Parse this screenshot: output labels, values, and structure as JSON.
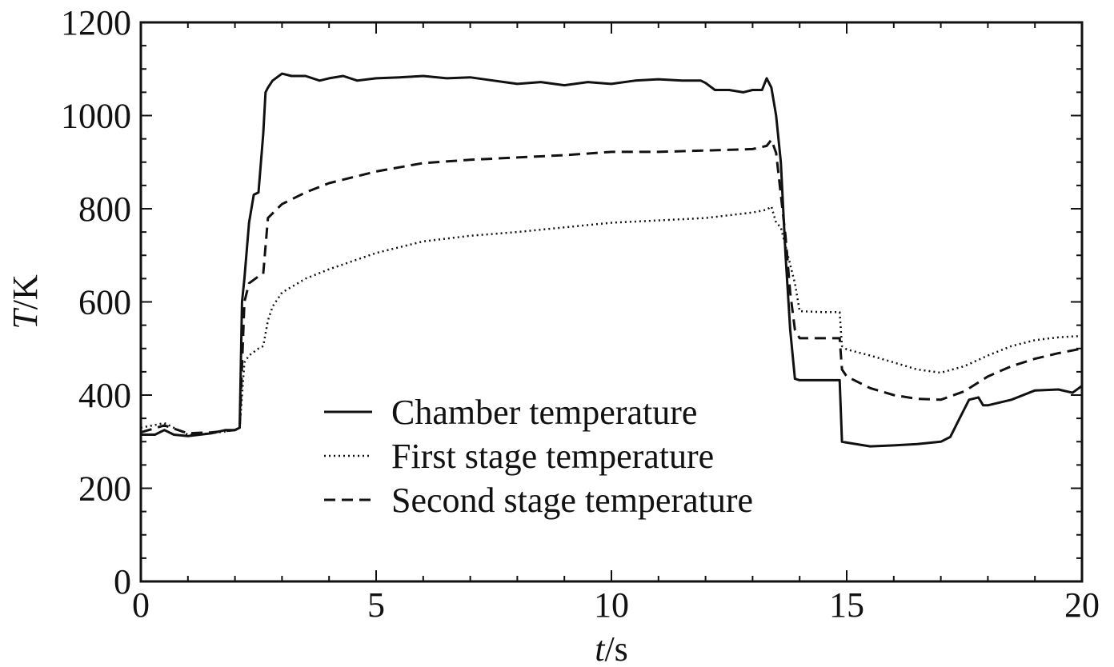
{
  "chart_data": {
    "type": "line",
    "xlabel_italic": "t",
    "xlabel_unit": "/s",
    "ylabel_italic": "T",
    "ylabel_unit": "/K",
    "xlim": [
      0,
      20
    ],
    "ylim": [
      0,
      1200
    ],
    "x_ticks": [
      0,
      5,
      10,
      15,
      20
    ],
    "x_tick_labels": [
      "0",
      "5",
      "10",
      "15",
      "20"
    ],
    "y_ticks": [
      0,
      200,
      400,
      600,
      800,
      1000,
      1200
    ],
    "y_tick_labels": [
      "0",
      "200",
      "400",
      "600",
      "800",
      "1000",
      "1200"
    ],
    "grid": false,
    "legend_placement": "lower-center",
    "series": [
      {
        "name": "Chamber temperature",
        "style": "solid",
        "color": "#111111",
        "x": [
          0,
          0.3,
          0.5,
          0.7,
          1.0,
          1.5,
          1.8,
          2.0,
          2.1,
          2.15,
          2.2,
          2.3,
          2.4,
          2.5,
          2.6,
          2.65,
          2.7,
          2.8,
          3.0,
          3.2,
          3.5,
          3.8,
          4.0,
          4.3,
          4.6,
          5.0,
          5.5,
          6.0,
          6.5,
          7.0,
          7.5,
          8.0,
          8.5,
          9.0,
          9.5,
          10.0,
          10.5,
          11.0,
          11.5,
          11.9,
          12.0,
          12.2,
          12.5,
          12.8,
          13.0,
          13.2,
          13.3,
          13.4,
          13.5,
          13.6,
          13.7,
          13.8,
          13.9,
          14.0,
          14.5,
          14.85,
          14.9,
          15.0,
          15.5,
          16.0,
          16.5,
          17.0,
          17.2,
          17.4,
          17.6,
          17.8,
          17.9,
          18.0,
          18.5,
          19.0,
          19.5,
          19.8,
          20.0
        ],
        "y": [
          315,
          315,
          325,
          315,
          312,
          318,
          325,
          325,
          330,
          600,
          650,
          770,
          830,
          835,
          960,
          1050,
          1060,
          1075,
          1090,
          1085,
          1085,
          1075,
          1080,
          1085,
          1075,
          1080,
          1082,
          1085,
          1080,
          1082,
          1075,
          1068,
          1072,
          1065,
          1072,
          1068,
          1075,
          1078,
          1075,
          1075,
          1070,
          1055,
          1055,
          1050,
          1055,
          1055,
          1080,
          1060,
          1000,
          900,
          700,
          540,
          435,
          432,
          432,
          432,
          300,
          298,
          290,
          292,
          295,
          300,
          310,
          350,
          390,
          395,
          378,
          378,
          390,
          410,
          412,
          405,
          420
        ]
      },
      {
        "name": "First stage temperature",
        "style": "dotted",
        "color": "#111111",
        "x": [
          0,
          0.5,
          1.0,
          1.5,
          2.0,
          2.1,
          2.2,
          2.3,
          2.5,
          2.6,
          2.7,
          2.8,
          3.0,
          3.5,
          4.0,
          5.0,
          6.0,
          7.0,
          8.0,
          9.0,
          10.0,
          11.0,
          12.0,
          13.0,
          13.3,
          13.4,
          13.5,
          13.6,
          13.7,
          13.8,
          13.9,
          14.0,
          14.5,
          14.85,
          14.9,
          15.0,
          15.5,
          16.0,
          16.5,
          17.0,
          17.5,
          18.0,
          18.5,
          19.0,
          19.5,
          20.0
        ],
        "y": [
          330,
          340,
          315,
          318,
          325,
          330,
          470,
          485,
          500,
          505,
          560,
          590,
          620,
          650,
          670,
          705,
          730,
          742,
          750,
          760,
          770,
          775,
          780,
          792,
          798,
          805,
          770,
          760,
          720,
          680,
          640,
          580,
          578,
          578,
          505,
          498,
          485,
          470,
          455,
          448,
          462,
          485,
          505,
          518,
          524,
          527
        ]
      },
      {
        "name": "Second stage temperature",
        "style": "dashed",
        "color": "#111111",
        "x": [
          0,
          0.5,
          1.0,
          1.5,
          2.0,
          2.1,
          2.2,
          2.3,
          2.5,
          2.6,
          2.7,
          2.8,
          3.0,
          3.5,
          4.0,
          5.0,
          6.0,
          7.0,
          8.0,
          9.0,
          10.0,
          11.0,
          12.0,
          13.0,
          13.3,
          13.4,
          13.5,
          13.6,
          13.7,
          13.8,
          13.9,
          14.0,
          14.5,
          14.85,
          14.9,
          15.0,
          15.5,
          16.0,
          16.5,
          17.0,
          17.5,
          18.0,
          18.5,
          19.0,
          19.5,
          20.0
        ],
        "y": [
          320,
          335,
          318,
          320,
          325,
          330,
          600,
          640,
          655,
          660,
          780,
          790,
          810,
          835,
          855,
          880,
          898,
          905,
          910,
          915,
          922,
          922,
          925,
          928,
          935,
          948,
          920,
          830,
          740,
          620,
          540,
          522,
          522,
          522,
          455,
          440,
          415,
          400,
          392,
          390,
          408,
          440,
          462,
          478,
          490,
          500
        ]
      }
    ]
  }
}
